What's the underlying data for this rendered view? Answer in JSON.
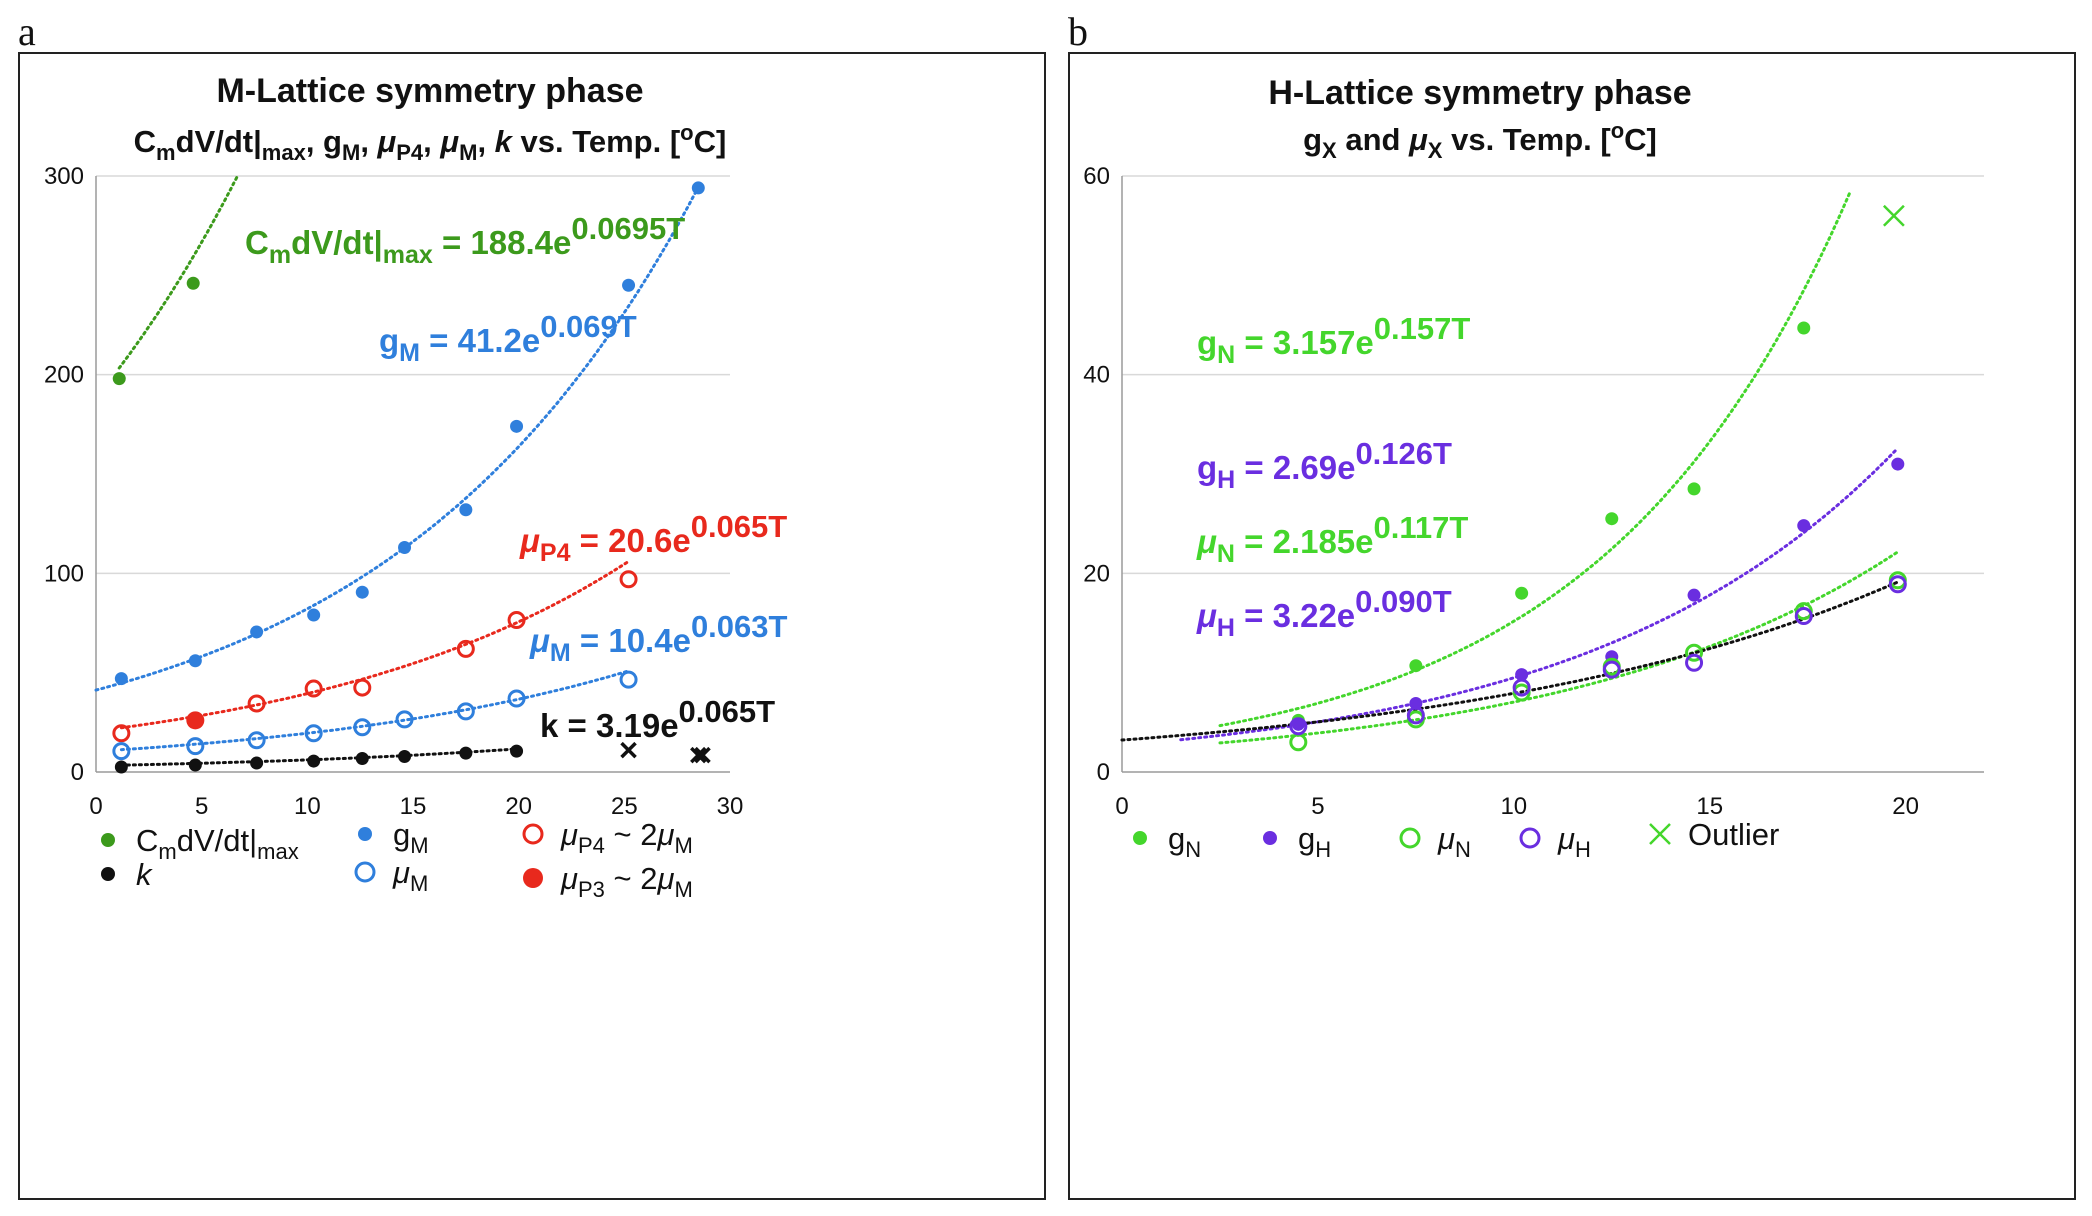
{
  "panels": {
    "a": {
      "letter": "a",
      "title_line1": "M-Lattice symmetry phase",
      "title_line2_parts": [
        "C",
        "m",
        "dV/dt|",
        "max",
        ", g",
        "M",
        ", ",
        "μ",
        "P4",
        ", ",
        "μ",
        "M",
        ", ",
        "k",
        "  vs. Temp. [",
        "o",
        "C]"
      ],
      "equations": [
        {
          "text": [
            "C",
            "m",
            "dV/dt|",
            "max",
            " = 188.4e",
            "0.0695T"
          ],
          "color": "#3c9a1c"
        },
        {
          "text": [
            "g",
            "M",
            " = 41.2e",
            "0.069T"
          ],
          "color": "#2f7fdc"
        },
        {
          "text": [
            "μ",
            "P4",
            " = 20.6e",
            "0.065T"
          ],
          "color": "#e8291d"
        },
        {
          "text": [
            "μ",
            "M",
            " = 10.4e",
            "0.063T"
          ],
          "color": "#2f7fdc"
        },
        {
          "text": [
            "k = 3.19e",
            "0.065T"
          ],
          "color": "#111111"
        }
      ],
      "legend": [
        {
          "label": [
            "C",
            "m",
            "dV/dt|",
            "max"
          ],
          "marker": "dot",
          "color": "#3c9a1c"
        },
        {
          "label": [
            "g",
            "M"
          ],
          "marker": "dot",
          "color": "#2f7fdc"
        },
        {
          "label": [
            "μ",
            "P4",
            " ~ 2",
            "μ",
            "M"
          ],
          "marker": "ring",
          "color": "#e8291d"
        },
        {
          "label": [
            "k"
          ],
          "marker": "dot",
          "color": "#111111"
        },
        {
          "label": [
            "μ",
            "M"
          ],
          "marker": "ring",
          "color": "#2f7fdc"
        },
        {
          "label": [
            "μ",
            "P3",
            " ~ 2",
            "μ",
            "M"
          ],
          "marker": "dot",
          "color": "#e8291d"
        }
      ]
    },
    "b": {
      "letter": "b",
      "title_line1": "H-Lattice symmetry phase",
      "title_line2_parts": [
        "g",
        "X",
        " and ",
        "μ",
        "X",
        " vs. Temp. [",
        "o",
        "C]"
      ],
      "equations": [
        {
          "text": [
            "g",
            "N",
            " = 3.157e",
            "0.157T"
          ],
          "color": "#44d62c"
        },
        {
          "text": [
            "g",
            "H",
            " = 2.69e",
            "0.126T"
          ],
          "color": "#6a2ee0"
        },
        {
          "text": [
            "μ",
            "N",
            " = 2.185e",
            "0.117T"
          ],
          "color": "#44d62c"
        },
        {
          "text": [
            "μ",
            "H",
            " = 3.22e",
            "0.090T"
          ],
          "color": "#6a2ee0"
        }
      ],
      "legend": [
        {
          "label": [
            "g",
            "N"
          ],
          "marker": "dot",
          "color": "#44d62c"
        },
        {
          "label": [
            "g",
            "H"
          ],
          "marker": "dot",
          "color": "#6a2ee0"
        },
        {
          "label": [
            "μ",
            "N"
          ],
          "marker": "ring",
          "color": "#44d62c"
        },
        {
          "label": [
            "μ",
            "H"
          ],
          "marker": "ring",
          "color": "#6a2ee0"
        },
        {
          "label": [
            "Outlier"
          ],
          "marker": "x",
          "color": "#44d62c"
        }
      ]
    }
  },
  "chart_data": [
    {
      "type": "scatter",
      "panel": "a",
      "xlim": [
        0,
        30
      ],
      "ylim": [
        0,
        300
      ],
      "x_ticks": [
        0,
        5,
        10,
        15,
        20,
        25,
        30
      ],
      "y_ticks": [
        0,
        100,
        200,
        300
      ],
      "grid": true,
      "series": [
        {
          "name": "CmdV/dt|max",
          "marker": "dot",
          "color": "#3c9a1c",
          "points": [
            [
              1.1,
              198
            ],
            [
              4.6,
              246
            ]
          ],
          "fit": {
            "a": 188.4,
            "b": 0.0695,
            "range": [
              1.1,
              6.9
            ],
            "color": "#3c9a1c"
          }
        },
        {
          "name": "gM",
          "marker": "dot",
          "color": "#2f7fdc",
          "points": [
            [
              1.2,
              47
            ],
            [
              4.7,
              56
            ],
            [
              7.6,
              70.5
            ],
            [
              10.3,
              79
            ],
            [
              12.6,
              90.5
            ],
            [
              14.6,
              113
            ],
            [
              17.5,
              132
            ],
            [
              19.9,
              174
            ],
            [
              25.2,
              245
            ],
            [
              28.5,
              294
            ]
          ],
          "fit": {
            "a": 41.2,
            "b": 0.069,
            "range": [
              0,
              28.5
            ],
            "color": "#2f7fdc"
          }
        },
        {
          "name": "μP4 ~ 2μM",
          "marker": "ring",
          "color": "#e8291d",
          "points": [
            [
              1.2,
              19.5
            ],
            [
              7.6,
              34.5
            ],
            [
              10.3,
              42
            ],
            [
              12.6,
              42.5
            ],
            [
              17.5,
              62
            ],
            [
              19.9,
              76.5
            ],
            [
              25.2,
              97
            ]
          ],
          "fit": {
            "a": 20.6,
            "b": 0.065,
            "range": [
              1.2,
              25.2
            ],
            "color": "#e8291d"
          }
        },
        {
          "name": "μP3 ~ 2μM",
          "marker": "dot",
          "color": "#e8291d",
          "points": [
            [
              4.7,
              26
            ]
          ]
        },
        {
          "name": "μM",
          "marker": "ring",
          "color": "#2f7fdc",
          "points": [
            [
              1.2,
              10.5
            ],
            [
              4.7,
              13
            ],
            [
              7.6,
              16
            ],
            [
              10.3,
              19.5
            ],
            [
              12.6,
              22.5
            ],
            [
              14.6,
              26.5
            ],
            [
              17.5,
              30.5
            ],
            [
              19.9,
              37
            ],
            [
              25.2,
              46.5
            ]
          ],
          "fit": {
            "a": 10.4,
            "b": 0.063,
            "range": [
              1.2,
              25.2
            ],
            "color": "#2f7fdc"
          }
        },
        {
          "name": "k",
          "marker": "dot",
          "color": "#111111",
          "points": [
            [
              1.2,
              2.5
            ],
            [
              4.7,
              3.5
            ],
            [
              7.6,
              4.5
            ],
            [
              10.3,
              5.5
            ],
            [
              12.6,
              6.8
            ],
            [
              14.6,
              7.8
            ],
            [
              17.5,
              9.5
            ],
            [
              19.9,
              10.5
            ]
          ],
          "fit": {
            "a": 3.19,
            "b": 0.065,
            "range": [
              1.2,
              19.9
            ],
            "color": "#111111"
          }
        },
        {
          "name": "k outliers",
          "marker": "x",
          "color": "#111111",
          "points": [
            [
              25.2,
              11
            ],
            [
              28.5,
              8.5
            ],
            [
              28.7,
              8.5
            ]
          ]
        }
      ]
    },
    {
      "type": "scatter",
      "panel": "b",
      "xlim": [
        0,
        22
      ],
      "ylim": [
        0,
        60
      ],
      "x_ticks": [
        0,
        5,
        10,
        15,
        20
      ],
      "y_ticks": [
        0,
        20,
        40,
        60
      ],
      "grid": true,
      "series": [
        {
          "name": "gN",
          "marker": "dot",
          "color": "#44d62c",
          "points": [
            [
              4.5,
              5.2
            ],
            [
              7.5,
              10.7
            ],
            [
              10.2,
              18
            ],
            [
              12.5,
              25.5
            ],
            [
              14.6,
              28.5
            ],
            [
              17.4,
              44.7
            ]
          ],
          "fit": {
            "a": 3.157,
            "b": 0.157,
            "range": [
              2.5,
              18.6
            ],
            "color": "#44d62c"
          }
        },
        {
          "name": "gH",
          "marker": "dot",
          "color": "#6a2ee0",
          "points": [
            [
              4.5,
              4.8
            ],
            [
              7.5,
              6.9
            ],
            [
              10.2,
              9.8
            ],
            [
              12.5,
              11.6
            ],
            [
              14.6,
              17.8
            ],
            [
              17.4,
              24.8
            ],
            [
              19.8,
              31
            ]
          ],
          "fit": {
            "a": 2.69,
            "b": 0.126,
            "range": [
              1.5,
              19.8
            ],
            "color": "#6a2ee0"
          }
        },
        {
          "name": "μN",
          "marker": "ring",
          "color": "#44d62c",
          "points": [
            [
              4.5,
              3
            ],
            [
              7.5,
              5.3
            ],
            [
              10.2,
              8
            ],
            [
              12.5,
              10.6
            ],
            [
              14.6,
              12
            ],
            [
              17.4,
              16.2
            ],
            [
              19.8,
              19.3
            ]
          ],
          "fit": {
            "a": 2.185,
            "b": 0.117,
            "range": [
              2.5,
              19.8
            ],
            "color": "#44d62c"
          }
        },
        {
          "name": "μH",
          "marker": "ring",
          "color": "#6a2ee0",
          "points": [
            [
              4.5,
              4.6
            ],
            [
              7.5,
              5.7
            ],
            [
              10.2,
              8.5
            ],
            [
              12.5,
              10.3
            ],
            [
              14.6,
              11
            ],
            [
              17.4,
              15.7
            ],
            [
              19.8,
              18.9
            ]
          ]
        },
        {
          "name": "μH fit",
          "marker": "none",
          "color": "#111111",
          "fit": {
            "a": 3.22,
            "b": 0.09,
            "range": [
              0,
              19.8
            ],
            "color": "#111111"
          }
        },
        {
          "name": "Outlier",
          "marker": "x",
          "color": "#44d62c",
          "points": [
            [
              19.7,
              56
            ]
          ]
        }
      ]
    }
  ]
}
